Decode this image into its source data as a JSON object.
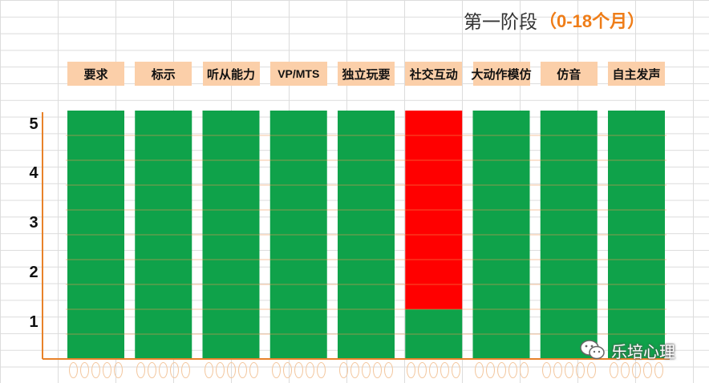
{
  "chart_data": {
    "type": "bar",
    "title": "第一阶段",
    "subtitle_open": "（",
    "subtitle_num": "0-18",
    "subtitle_unit": "个月",
    "subtitle_close": "）",
    "categories": [
      "要求",
      "标示",
      "听从能力",
      "VP/MTS",
      "独立玩要",
      "社交互动",
      "大动作模仿",
      "仿音",
      "自主发声"
    ],
    "ylim": [
      0,
      5
    ],
    "yticks": [
      "1",
      "2",
      "3",
      "4",
      "5"
    ],
    "grid": true,
    "series": [
      {
        "values": [
          5,
          5,
          5,
          5,
          5,
          1,
          5,
          5,
          5
        ],
        "colors": [
          "#0fa24a",
          "#0fa24a",
          "#0fa24a",
          "#0fa24a",
          "#0fa24a",
          "#0fa24a",
          "#0fa24a",
          "#0fa24a",
          "#0fa24a"
        ]
      },
      {
        "values": [
          0,
          0,
          0,
          0,
          0,
          4,
          0,
          0,
          0
        ],
        "colors": [
          "#ff0000",
          "#ff0000",
          "#ff0000",
          "#ff0000",
          "#ff0000",
          "#ff0000",
          "#ff0000",
          "#ff0000",
          "#ff0000"
        ]
      }
    ],
    "colors": {
      "axis": "#e8822a",
      "green": "#0fa24a",
      "red": "#ff0000",
      "header_bg": "#fbcfa9"
    }
  },
  "watermark": {
    "text": "乐培心理",
    "icon": "wechat-icon"
  }
}
